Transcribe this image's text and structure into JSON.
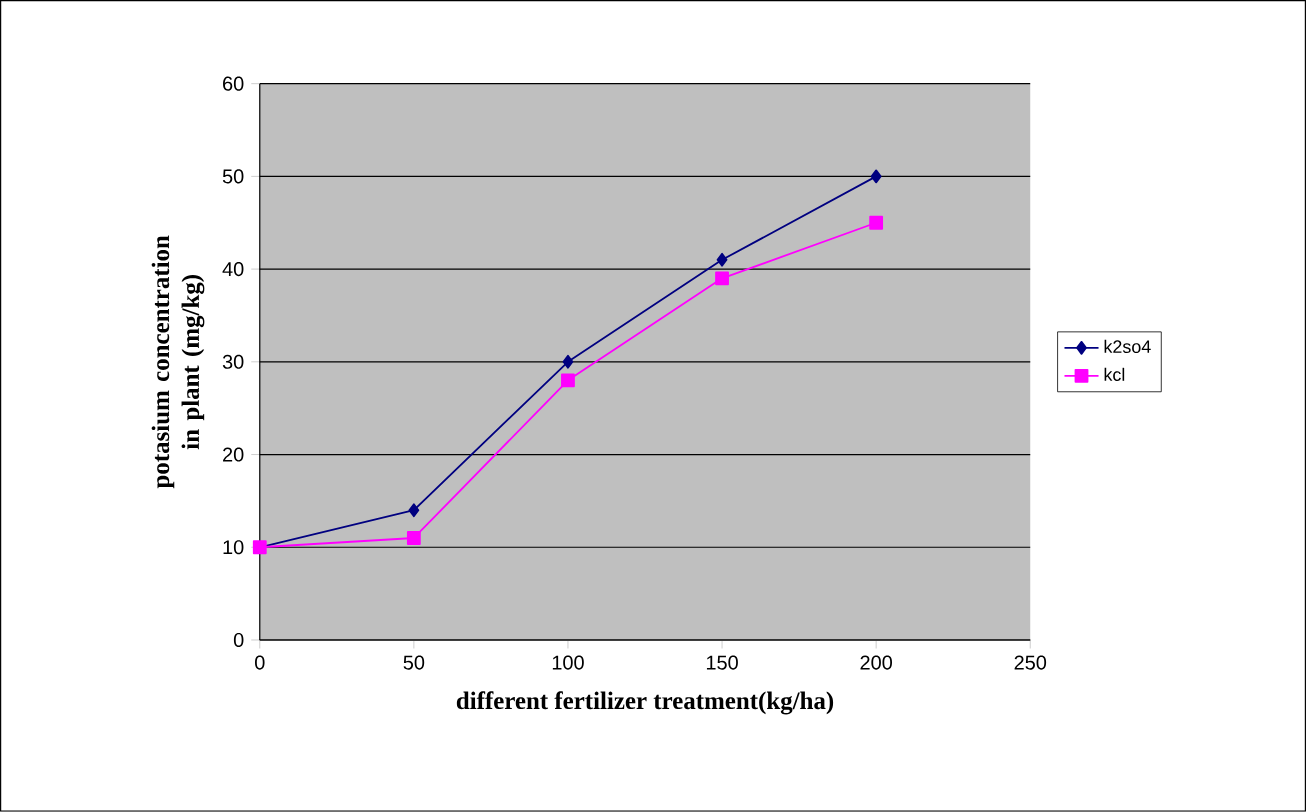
{
  "chart_data": {
    "type": "line",
    "xlabel": "different fertilizer treatment(kg/ha)",
    "ylabel": "potasium concentration in plant (mg/kg)",
    "x": [
      0,
      50,
      100,
      150,
      200
    ],
    "series": [
      {
        "name": "k2so4",
        "color": "#000080",
        "values": [
          10,
          14,
          30,
          41,
          50
        ],
        "marker": "diamond"
      },
      {
        "name": "kcl",
        "color": "#ff00ff",
        "values": [
          10,
          11,
          28,
          39,
          45
        ],
        "marker": "square"
      }
    ],
    "xlim": [
      0,
      250
    ],
    "xticks": [
      0,
      50,
      100,
      150,
      200,
      250
    ],
    "ylim": [
      0,
      60
    ],
    "yticks": [
      0,
      10,
      20,
      30,
      40,
      50,
      60
    ],
    "grid": "y",
    "legend": "right",
    "line_style": "solid"
  }
}
